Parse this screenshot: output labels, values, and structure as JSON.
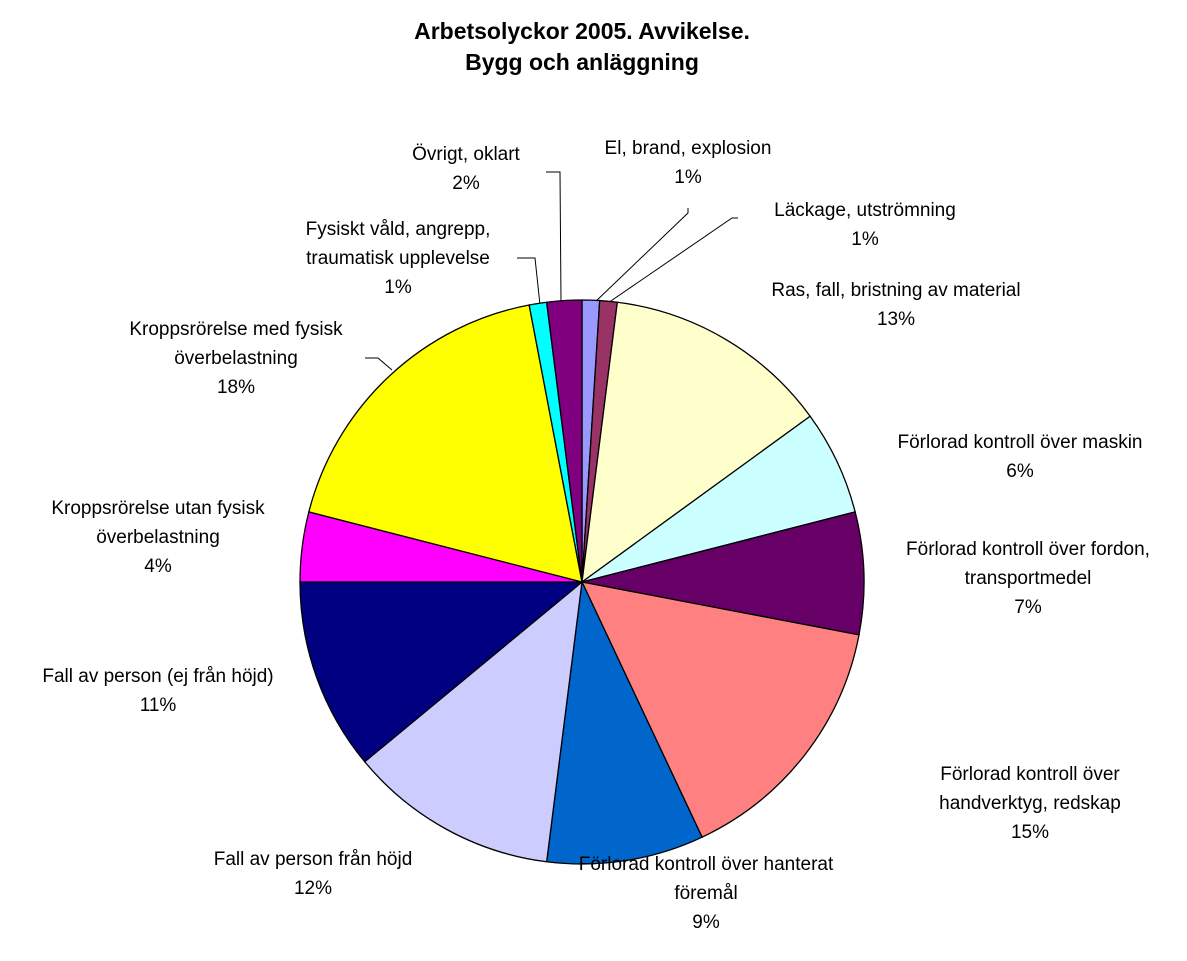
{
  "chart_data": {
    "type": "pie",
    "title": "Arbetsolyckor 2005. Avvikelse.\nBygg och anläggning",
    "categories": [
      "El, brand, explosion",
      "Läckage, utströmning",
      "Ras, fall, bristning av material",
      "Förlorad kontroll över maskin",
      "Förlorad kontroll över fordon,\ntransportmedel",
      "Förlorad kontroll över\nhandverktyg, redskap",
      "Förlorad kontroll över hanterat\nföremål",
      "Fall av person från höjd",
      "Fall av person (ej från höjd)",
      "Kroppsrörelse utan fysisk\növerbelastning",
      "Kroppsrörelse med fysisk\növerbelastning",
      "Fysiskt våld, angrepp,\ntraumatisk upplevelse",
      "Övrigt, oklart"
    ],
    "values": [
      1,
      1,
      13,
      6,
      7,
      15,
      9,
      12,
      11,
      4,
      18,
      1,
      2
    ],
    "value_labels": [
      "1%",
      "1%",
      "13%",
      "6%",
      "7%",
      "15%",
      "9%",
      "12%",
      "11%",
      "4%",
      "18%",
      "1%",
      "2%"
    ],
    "colors": [
      "#9999ff",
      "#993366",
      "#ffffcc",
      "#ccffff",
      "#660066",
      "#ff8080",
      "#0066cc",
      "#ccccff",
      "#000080",
      "#ff00ff",
      "#ffff00",
      "#00ffff",
      "#800080"
    ]
  }
}
